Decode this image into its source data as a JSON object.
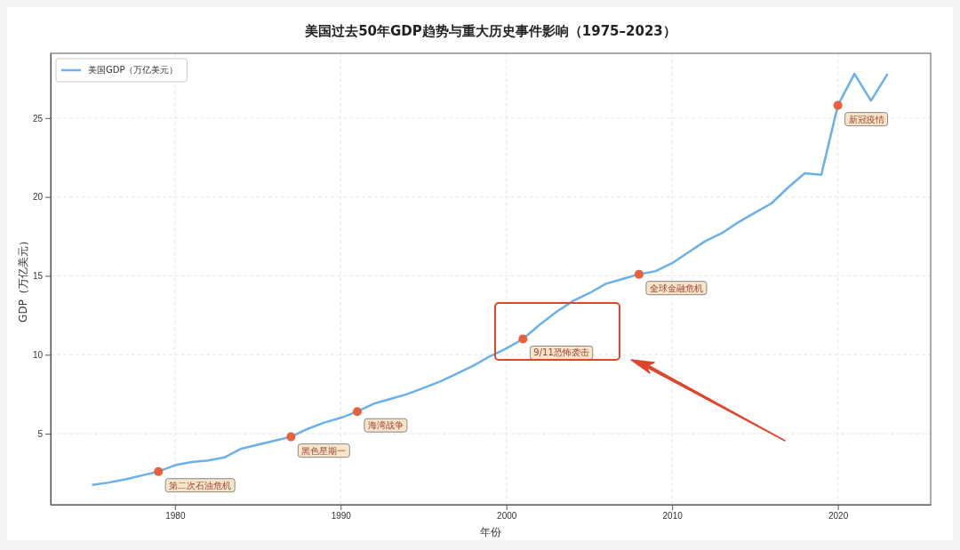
{
  "chart_data": {
    "type": "line",
    "title": "美国过去50年GDP趋势与重大历史事件影响（1975–2023）",
    "xlabel": "年份",
    "ylabel": "GDP（万亿美元）",
    "xlim": [
      1972.5,
      2025.6
    ],
    "ylim": [
      0.5,
      29.1
    ],
    "xticks": [
      1980,
      1990,
      2000,
      2010,
      2020
    ],
    "yticks": [
      5,
      10,
      15,
      20,
      25
    ],
    "grid": true,
    "legend": "top left",
    "series": [
      {
        "name": "美国GDP（万亿美元）",
        "color": "#6ab0ea",
        "x": [
          1975,
          1976,
          1977,
          1978,
          1979,
          1980,
          1981,
          1982,
          1983,
          1984,
          1985,
          1986,
          1987,
          1988,
          1989,
          1990,
          1991,
          1992,
          1993,
          1994,
          1995,
          1996,
          1997,
          1998,
          1999,
          2000,
          2001,
          2002,
          2003,
          2004,
          2005,
          2006,
          2007,
          2008,
          2009,
          2010,
          2011,
          2012,
          2013,
          2014,
          2015,
          2016,
          2017,
          2018,
          2019,
          2020,
          2021,
          2022,
          2023
        ],
        "values": [
          1.75,
          1.9,
          2.1,
          2.35,
          2.6,
          3.0,
          3.2,
          3.3,
          3.5,
          4.05,
          4.3,
          4.55,
          4.8,
          5.3,
          5.7,
          6.0,
          6.4,
          6.9,
          7.2,
          7.5,
          7.9,
          8.3,
          8.8,
          9.3,
          9.9,
          10.4,
          11.0,
          11.9,
          12.7,
          13.4,
          13.9,
          14.5,
          14.8,
          15.1,
          15.3,
          15.8,
          16.5,
          17.2,
          17.7,
          18.4,
          19.0,
          19.6,
          20.6,
          21.5,
          21.4,
          25.8,
          27.8,
          26.1,
          27.8
        ]
      },
      {
        "type": "scatter",
        "color": "#e8603c",
        "marker": "circle",
        "x": [
          1979,
          1987,
          1991,
          2001,
          2008,
          2020
        ],
        "values": [
          2.6,
          4.8,
          6.4,
          11.0,
          15.1,
          25.8
        ]
      }
    ],
    "annotations": [
      {
        "text": "第二次石油危机",
        "x": 1979,
        "y": 2.6
      },
      {
        "text": "黑色星期一",
        "x": 1987,
        "y": 4.8
      },
      {
        "text": "海湾战争",
        "x": 1991,
        "y": 6.4
      },
      {
        "text": "9/11恐怖袭击",
        "x": 2001,
        "y": 11.0
      },
      {
        "text": "全球金融危机",
        "x": 2008,
        "y": 15.1
      },
      {
        "text": "新冠疫情",
        "x": 2020,
        "y": 25.8
      }
    ]
  }
}
